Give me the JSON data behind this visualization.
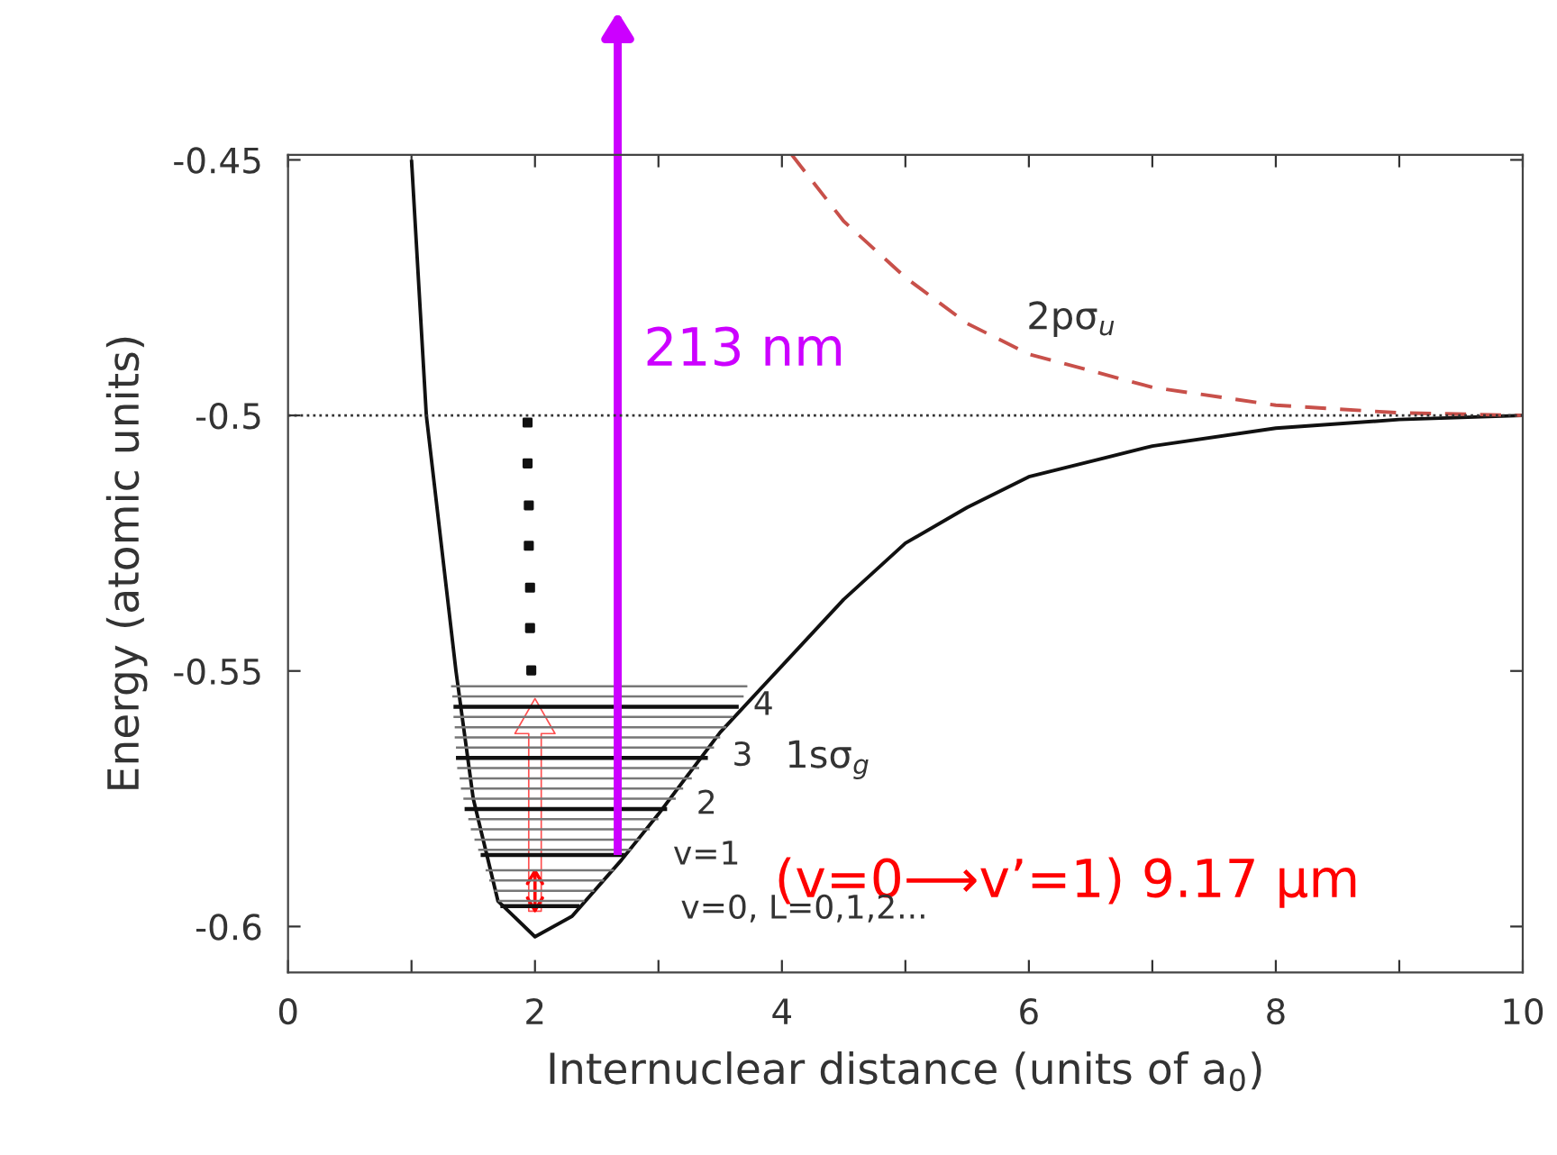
{
  "chart_data": {
    "type": "line",
    "xlabel": "Internuclear distance (units of a$_{0}$)",
    "ylabel": "Energy (atomic units)",
    "xlim": [
      0,
      10
    ],
    "ylim": [
      -0.609,
      -0.449
    ],
    "xticks": [
      0,
      {
        "value": 1,
        "label": null
      },
      2,
      {
        "value": 3,
        "label": null
      },
      4,
      {
        "value": 5,
        "label": null
      },
      6,
      {
        "value": 7,
        "label": null
      },
      8,
      {
        "value": 9,
        "label": null
      },
      10
    ],
    "yticks": [
      -0.6,
      -0.55,
      -0.5,
      -0.45
    ],
    "grid": false,
    "ref_lines": [
      {
        "axis": "y",
        "value": -0.5,
        "color": "#333333",
        "line_style": "dotted"
      }
    ],
    "series": [
      {
        "name": "1sσ$_{g}$",
        "color": "#111111",
        "line_style": "solid",
        "x": [
          1.0,
          1.12,
          1.36,
          1.5,
          1.7,
          2.0,
          2.3,
          2.7,
          3.0,
          3.5,
          4.0,
          4.5,
          5.0,
          5.5,
          6.0,
          7.0,
          8.0,
          9.0,
          10.0
        ],
        "values": [
          -0.45,
          -0.5,
          -0.55,
          -0.575,
          -0.595,
          -0.602,
          -0.598,
          -0.587,
          -0.578,
          -0.562,
          -0.549,
          -0.536,
          -0.525,
          -0.518,
          -0.512,
          -0.506,
          -0.5025,
          -0.5008,
          -0.5
        ]
      },
      {
        "name": "2pσ$_{u}$",
        "color": "#c8504a",
        "line_style": "dashed",
        "x": [
          4.08,
          4.5,
          5.0,
          5.5,
          6.0,
          7.0,
          8.0,
          9.0,
          10.0
        ],
        "values": [
          -0.449,
          -0.462,
          -0.473,
          -0.482,
          -0.488,
          -0.4945,
          -0.498,
          -0.4995,
          -0.5
        ]
      },
      {
        "color": "#111111",
        "line_style": "solid",
        "x": [
          1.72,
          2.36,
          null,
          1.56,
          2.73,
          null,
          1.43,
          3.07,
          null,
          1.36,
          3.4,
          null,
          1.34,
          3.65
        ],
        "values": [
          -0.596,
          -0.596,
          null,
          -0.586,
          -0.586,
          null,
          -0.577,
          -0.577,
          null,
          -0.567,
          -0.567,
          null,
          -0.557,
          -0.557
        ]
      },
      {
        "color": "#777777",
        "line_style": "solid",
        "x": [
          1.7,
          2.4,
          null,
          1.67,
          2.48,
          null,
          1.63,
          2.56,
          null,
          1.6,
          2.64,
          null,
          1.54,
          2.78,
          null,
          1.51,
          2.85,
          null,
          1.48,
          2.93,
          null,
          1.46,
          3.0,
          null,
          1.42,
          3.14,
          null,
          1.4,
          3.2,
          null,
          1.39,
          3.27,
          null,
          1.37,
          3.33,
          null,
          1.36,
          3.45,
          null,
          1.35,
          3.5,
          null,
          1.35,
          3.55,
          null,
          1.34,
          3.6,
          null,
          1.33,
          3.69,
          null,
          1.32,
          3.72
        ],
        "values": [
          -0.595,
          -0.595,
          null,
          -0.593,
          -0.593,
          null,
          -0.591,
          -0.591,
          null,
          -0.589,
          -0.589,
          null,
          -0.585,
          -0.585,
          null,
          -0.583,
          -0.583,
          null,
          -0.581,
          -0.581,
          null,
          -0.579,
          -0.579,
          null,
          -0.575,
          -0.575,
          null,
          -0.573,
          -0.573,
          null,
          -0.571,
          -0.571,
          null,
          -0.569,
          -0.569,
          null,
          -0.565,
          -0.565,
          null,
          -0.563,
          -0.563,
          null,
          -0.561,
          -0.561,
          null,
          -0.559,
          -0.559,
          null,
          -0.555,
          -0.555,
          null,
          -0.553,
          -0.553
        ]
      },
      {
        "type": "scatter",
        "marker": "square",
        "color": "#111111",
        "x": [
          1.94,
          1.94,
          1.95,
          1.95,
          1.96,
          1.96,
          1.97
        ],
        "values": [
          -0.5014,
          -0.5094,
          -0.5176,
          -0.5255,
          -0.5337,
          -0.5416,
          -0.5499
        ]
      },
      {
        "color": "#cc00ff",
        "line_style": "solid",
        "x": [
          2.67,
          2.67
        ],
        "values": [
          -0.586,
          -0.449
        ]
      }
    ],
    "annotations": [
      "213 nm",
      "(v=0⟶v’=1) 9.17 µm",
      "4",
      "3",
      "2",
      "v=1",
      "v=0, L=0,1,2..."
    ]
  }
}
